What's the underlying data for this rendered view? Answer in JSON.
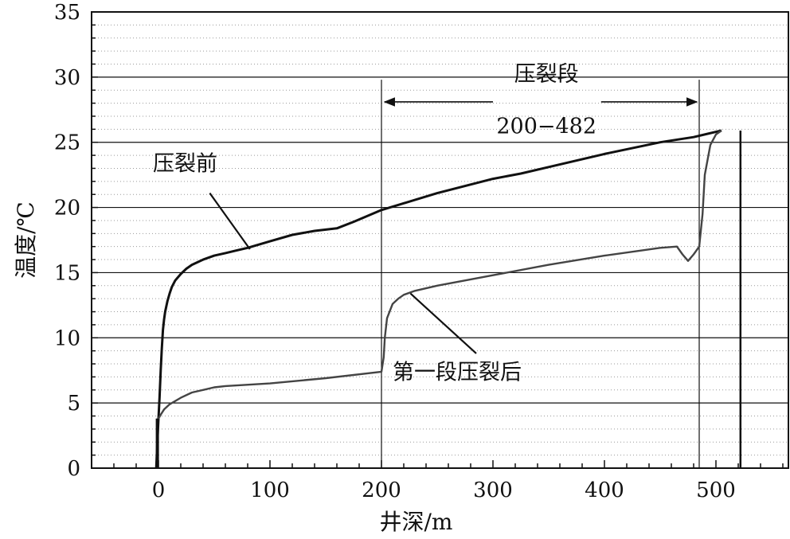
{
  "chart_data": {
    "type": "line",
    "xlabel": "井深/m",
    "ylabel": "温度/℃",
    "xlim": [
      -60,
      565
    ],
    "ylim": [
      0,
      35
    ],
    "x_ticks": [
      0,
      100,
      200,
      300,
      400,
      500
    ],
    "y_ticks": [
      0,
      5,
      10,
      15,
      20,
      25,
      30,
      35
    ],
    "grid": "horizontal major solid + dotted minor",
    "series": [
      {
        "name": "压裂前",
        "color": "#111111",
        "x": [
          -2,
          -1,
          0,
          1,
          2,
          3,
          4,
          5,
          6,
          8,
          10,
          12,
          15,
          20,
          25,
          30,
          40,
          50,
          60,
          70,
          80,
          100,
          120,
          140,
          150,
          160,
          175,
          200,
          250,
          300,
          325,
          350,
          400,
          450,
          480,
          500,
          505
        ],
        "y": [
          0,
          2,
          3.8,
          5.5,
          7.5,
          9.2,
          10.6,
          11.4,
          12.0,
          12.8,
          13.4,
          13.9,
          14.4,
          14.9,
          15.3,
          15.6,
          16.0,
          16.3,
          16.5,
          16.7,
          16.9,
          17.4,
          17.9,
          18.2,
          18.3,
          18.4,
          18.9,
          19.8,
          21.1,
          22.2,
          22.6,
          23.1,
          24.1,
          25.0,
          25.4,
          25.8,
          25.9
        ]
      },
      {
        "name": "第一段压裂后",
        "color": "#444444",
        "x": [
          -2,
          0,
          2,
          5,
          10,
          20,
          30,
          40,
          50,
          60,
          100,
          150,
          200,
          202,
          203,
          205,
          210,
          215,
          220,
          230,
          250,
          300,
          350,
          400,
          450,
          465,
          470,
          475,
          480,
          485,
          488,
          490,
          495,
          500,
          505
        ],
        "y": [
          3.7,
          3.8,
          4.1,
          4.5,
          4.9,
          5.4,
          5.8,
          6.0,
          6.2,
          6.3,
          6.5,
          6.9,
          7.4,
          8.5,
          10.0,
          11.5,
          12.6,
          13.0,
          13.3,
          13.6,
          14.0,
          14.8,
          15.6,
          16.3,
          16.9,
          17.0,
          16.4,
          15.9,
          16.4,
          17.0,
          19.5,
          22.5,
          24.8,
          25.6,
          25.9
        ]
      }
    ],
    "vlines": [
      200,
      485,
      522
    ],
    "annotations": {
      "before_label": "压裂前",
      "after_label": "第一段压裂后",
      "zone_label": "压裂段",
      "zone_range": "200−482"
    }
  }
}
